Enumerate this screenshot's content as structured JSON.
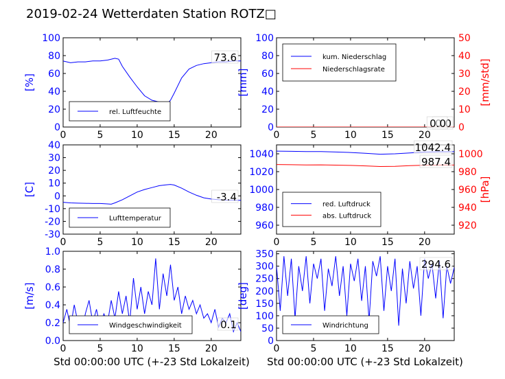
{
  "title": "2019-02-24 Wetterdaten Station ROTZ□",
  "xlabel": "Std 00:00:00 UTC (+-23 Std Lokalzeit)",
  "colors": {
    "blue": "#0000ff",
    "red": "#ff0000",
    "black": "#000000"
  },
  "chart_data": [
    {
      "type": "line",
      "xlim": [
        0,
        24
      ],
      "x_ticks": [
        0,
        5,
        10,
        15,
        20
      ],
      "ylim": [
        0,
        100
      ],
      "y_ticks": [
        0,
        20,
        40,
        60,
        80,
        100
      ],
      "ylabel": "[%]",
      "legend": {
        "placement": "bottom-center",
        "entries": [
          "rel. Luftfeuchte"
        ]
      },
      "annotation": "73.6",
      "series": [
        {
          "name": "rel. Luftfeuchte",
          "color": "#0000ff",
          "x": [
            0,
            1,
            2,
            3,
            4,
            5,
            6,
            7,
            7.5,
            8,
            9,
            10,
            11,
            12,
            13,
            13.5,
            14,
            14.5,
            15,
            16,
            17,
            18,
            19,
            20,
            21,
            22,
            23,
            24
          ],
          "y": [
            74,
            72,
            73,
            73,
            74,
            74,
            75,
            77,
            76,
            68,
            56,
            45,
            35,
            30,
            28,
            26,
            26,
            30,
            38,
            55,
            65,
            69,
            71,
            72,
            73,
            73,
            74,
            74
          ]
        }
      ]
    },
    {
      "type": "line",
      "xlim": [
        0,
        24
      ],
      "x_ticks": [
        0,
        5,
        10,
        15,
        20
      ],
      "ylim": [
        0,
        100
      ],
      "y_ticks": [
        0,
        20,
        40,
        60,
        80,
        100
      ],
      "ylabel": "[mm]",
      "y2lim": [
        0,
        50
      ],
      "y2_ticks": [
        0,
        10,
        20,
        30,
        40,
        50
      ],
      "y2label": "[mm/std]",
      "legend": {
        "placement": "top-left",
        "entries": [
          "kum. Niederschlag",
          "Niederschlagsrate"
        ]
      },
      "annotations": [
        "0.0",
        "0.0"
      ],
      "series": [
        {
          "name": "kum. Niederschlag",
          "color": "#0000ff",
          "axis": "left",
          "x": [
            0,
            24
          ],
          "y": [
            0,
            0
          ]
        },
        {
          "name": "Niederschlagsrate",
          "color": "#ff0000",
          "axis": "right",
          "x": [
            0,
            24
          ],
          "y": [
            0,
            0
          ]
        }
      ]
    },
    {
      "type": "line",
      "xlim": [
        0,
        24
      ],
      "x_ticks": [
        0,
        5,
        10,
        15,
        20
      ],
      "ylim": [
        -30,
        40
      ],
      "y_ticks": [
        -30,
        -20,
        -10,
        0,
        10,
        20,
        30,
        40
      ],
      "ylabel": "[C]",
      "legend": {
        "placement": "bottom-center",
        "entries": [
          "Lufttemperatur"
        ]
      },
      "annotation": "-3.4",
      "series": [
        {
          "name": "Lufttemperatur",
          "color": "#0000ff",
          "x": [
            0,
            1,
            2,
            3,
            4,
            5,
            6,
            6.5,
            7,
            8,
            9,
            10,
            11,
            12,
            13,
            14,
            14.5,
            15,
            16,
            17,
            18,
            19,
            20,
            21,
            22,
            23,
            24
          ],
          "y": [
            -5,
            -5.5,
            -5.7,
            -5.8,
            -6,
            -6,
            -6.3,
            -6.5,
            -5.5,
            -3,
            0,
            3,
            5,
            6.5,
            8,
            8.7,
            9,
            8.5,
            6,
            3,
            0.5,
            -1.5,
            -2.5,
            -3,
            -3.3,
            -3.4,
            -3.5
          ]
        }
      ]
    },
    {
      "type": "line",
      "xlim": [
        0,
        24
      ],
      "x_ticks": [
        0,
        5,
        10,
        15,
        20
      ],
      "ylim": [
        950,
        1050
      ],
      "y_ticks": [
        960,
        980,
        1000,
        1020,
        1040
      ],
      "y2lim": [
        910,
        1010
      ],
      "y2_ticks": [
        920,
        940,
        960,
        980,
        1000
      ],
      "y2label": "[hPa]",
      "legend": {
        "placement": "bottom-left",
        "entries": [
          "red. Luftdruck",
          "abs. Luftdruck"
        ]
      },
      "annotations": [
        "1042.4",
        "987.4"
      ],
      "series": [
        {
          "name": "red. Luftdruck",
          "color": "#0000ff",
          "axis": "left",
          "x": [
            0,
            2,
            4,
            6,
            8,
            10,
            12,
            14,
            16,
            18,
            20,
            22,
            24
          ],
          "y": [
            1043,
            1042.8,
            1042.5,
            1042.5,
            1042,
            1041.5,
            1040.5,
            1039.5,
            1040,
            1041,
            1042,
            1042.3,
            1042.4
          ]
        },
        {
          "name": "abs. Luftdruck",
          "color": "#ff0000",
          "axis": "right",
          "x": [
            0,
            2,
            4,
            6,
            8,
            10,
            12,
            14,
            16,
            18,
            20,
            22,
            24
          ],
          "y": [
            988,
            987.8,
            987.5,
            987.6,
            987.3,
            987,
            986.5,
            985.8,
            986,
            986.8,
            987.2,
            987.4,
            987.4
          ]
        }
      ]
    },
    {
      "type": "line",
      "xlim": [
        0,
        24
      ],
      "x_ticks": [
        0,
        5,
        10,
        15,
        20
      ],
      "ylim": [
        0,
        1.0
      ],
      "y_ticks": [
        0.0,
        0.2,
        0.4,
        0.6,
        0.8,
        1.0
      ],
      "ylabel": "[m/s]",
      "legend": {
        "placement": "bottom-center",
        "entries": [
          "Windgeschwindigkeit"
        ]
      },
      "annotation": "0.1",
      "series": [
        {
          "name": "Windgeschwindigkeit",
          "color": "#0000ff",
          "x": [
            0,
            0.5,
            1,
            1.5,
            2,
            2.5,
            3,
            3.5,
            4,
            4.5,
            5,
            5.5,
            6,
            6.5,
            7,
            7.5,
            8,
            8.5,
            9,
            9.5,
            10,
            10.5,
            11,
            11.5,
            12,
            12.5,
            13,
            13.5,
            14,
            14.5,
            15,
            15.5,
            16,
            16.5,
            17,
            17.5,
            18,
            18.5,
            19,
            19.5,
            20,
            20.5,
            21,
            21.5,
            22,
            22.5,
            23,
            23.5,
            24
          ],
          "y": [
            0.2,
            0.35,
            0.15,
            0.4,
            0.2,
            0.1,
            0.3,
            0.45,
            0.2,
            0.35,
            0.15,
            0.3,
            0.2,
            0.45,
            0.25,
            0.55,
            0.3,
            0.5,
            0.2,
            0.7,
            0.35,
            0.6,
            0.3,
            0.55,
            0.4,
            0.92,
            0.35,
            0.75,
            0.5,
            0.85,
            0.45,
            0.6,
            0.3,
            0.5,
            0.35,
            0.45,
            0.3,
            0.4,
            0.25,
            0.3,
            0.2,
            0.35,
            0.15,
            0.25,
            0.2,
            0.3,
            0.1,
            0.2,
            0.1
          ]
        }
      ]
    },
    {
      "type": "line",
      "xlim": [
        0,
        24
      ],
      "x_ticks": [
        0,
        5,
        10,
        15,
        20
      ],
      "ylim": [
        0,
        360
      ],
      "y_ticks": [
        0,
        50,
        100,
        150,
        200,
        250,
        300,
        350
      ],
      "ylabel": "[deg]",
      "legend": {
        "placement": "bottom-center",
        "entries": [
          "Windrichtung"
        ]
      },
      "annotation": "294.6",
      "series": [
        {
          "name": "Windrichtung",
          "color": "#0000ff",
          "x": [
            0,
            0.5,
            1,
            1.5,
            2,
            2.5,
            3,
            3.5,
            4,
            4.5,
            5,
            5.5,
            6,
            6.5,
            7,
            7.5,
            8,
            8.5,
            9,
            9.5,
            10,
            10.5,
            11,
            11.5,
            12,
            12.5,
            13,
            13.5,
            14,
            14.5,
            15,
            15.5,
            16,
            16.5,
            17,
            17.5,
            18,
            18.5,
            19,
            19.5,
            20,
            20.5,
            21,
            21.5,
            22,
            22.5,
            23,
            23.5,
            24
          ],
          "y": [
            300,
            120,
            340,
            180,
            330,
            90,
            300,
            200,
            340,
            150,
            310,
            250,
            330,
            120,
            290,
            220,
            340,
            180,
            300,
            100,
            310,
            240,
            330,
            160,
            300,
            80,
            320,
            260,
            340,
            120,
            300,
            200,
            330,
            60,
            290,
            150,
            320,
            210,
            300,
            100,
            330,
            250,
            310,
            170,
            320,
            90,
            300,
            230,
            295
          ]
        }
      ]
    }
  ]
}
